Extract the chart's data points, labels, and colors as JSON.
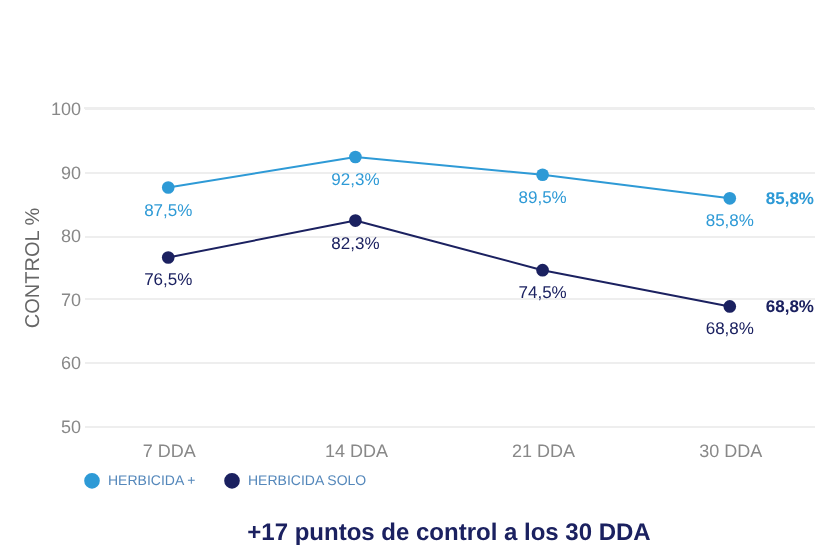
{
  "chart_data": {
    "type": "line",
    "ylabel": "CONTROL %",
    "categories": [
      "7 DDA",
      "14 DDA",
      "21 DDA",
      "30 DDA"
    ],
    "series": [
      {
        "name": "HERBICIDA +",
        "color": "#2e9ad6",
        "values": [
          87.5,
          92.3,
          89.5,
          85.8
        ],
        "value_labels": [
          "87,5%",
          "92,3%",
          "89,5%",
          "85,8%"
        ]
      },
      {
        "name": "HERBICIDA SOLO",
        "color": "#1b2160",
        "values": [
          76.5,
          82.3,
          74.5,
          68.8
        ],
        "value_labels": [
          "76,5%",
          "82,3%",
          "74,5%",
          "68,8%"
        ]
      }
    ],
    "annotations": [
      {
        "text": "85,8%",
        "x": "30 DDA",
        "y": 85.8
      },
      {
        "text": "68,8%",
        "x": "30 DDA",
        "y": 68.8
      },
      "+17 puntos de control a los 30 DDA"
    ],
    "ylim": [
      50,
      100
    ],
    "yticks": [
      50,
      60,
      70,
      80,
      90,
      100
    ],
    "grid": "y",
    "legend": "bottom left",
    "marker": "circle",
    "line_style": "solid"
  }
}
